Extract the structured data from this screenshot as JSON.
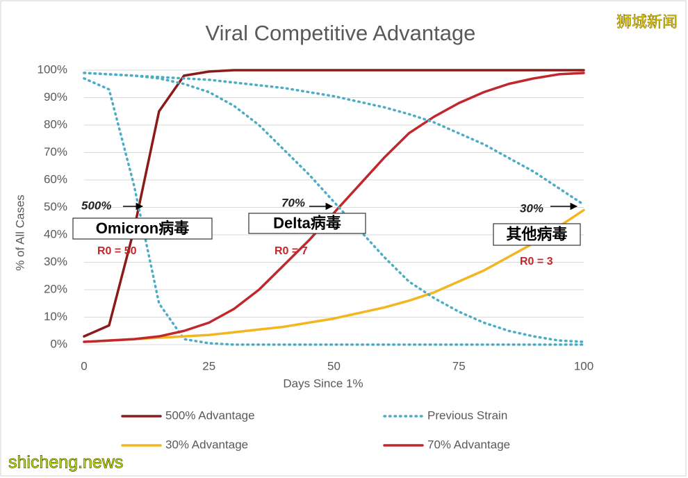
{
  "chart_data": {
    "type": "line",
    "title": "Viral Competitive Advantage",
    "x_label": "Days Since 1%",
    "y_label": "% of All Cases",
    "x": [
      0,
      5,
      10,
      15,
      20,
      25,
      30,
      35,
      40,
      45,
      50,
      55,
      60,
      65,
      70,
      75,
      80,
      85,
      90,
      95,
      100
    ],
    "xlim": [
      0,
      100
    ],
    "xticks": [
      0,
      25,
      50,
      75,
      100
    ],
    "ylim": [
      0,
      100
    ],
    "yticks": [
      {
        "value": 0,
        "label": "0%"
      },
      {
        "value": 10,
        "label": "10%"
      },
      {
        "value": 20,
        "label": "20%"
      },
      {
        "value": 30,
        "label": "30%"
      },
      {
        "value": 40,
        "label": "40%"
      },
      {
        "value": 50,
        "label": "50%"
      },
      {
        "value": 60,
        "label": "60%"
      },
      {
        "value": 70,
        "label": "70%"
      },
      {
        "value": 80,
        "label": "80%"
      },
      {
        "value": 90,
        "label": "90%"
      },
      {
        "value": 100,
        "label": "100%"
      }
    ],
    "grid": true,
    "series": [
      {
        "name": "500% Advantage",
        "color": "#8b1a1a",
        "style": "solid",
        "values": [
          3,
          7,
          42,
          85,
          98,
          99.5,
          100,
          100,
          100,
          100,
          100,
          100,
          100,
          100,
          100,
          100,
          100,
          100,
          100,
          100,
          100
        ]
      },
      {
        "name": "Previous Strain",
        "color": "#4bacc6",
        "style": "dotted",
        "values": [
          97,
          93,
          58,
          15,
          2,
          0.5,
          0,
          0,
          0,
          0,
          0,
          0,
          0,
          0,
          0,
          0,
          0,
          0,
          0,
          0,
          0
        ]
      },
      {
        "name": "30% Advantage",
        "color": "#f2b61f",
        "style": "solid",
        "values": [
          1,
          1.5,
          2,
          2.5,
          3,
          3.5,
          4.5,
          5.5,
          6.5,
          8,
          9.5,
          11.5,
          13.5,
          16,
          19,
          23,
          27,
          32,
          37,
          43,
          49
        ]
      },
      {
        "name": "70% Advantage",
        "color": "#c0282d",
        "style": "solid",
        "values": [
          1,
          1.5,
          2,
          3,
          5,
          8,
          13,
          20,
          29,
          38,
          48,
          58,
          68,
          77,
          83,
          88,
          92,
          95,
          97,
          98.5,
          99
        ]
      },
      {
        "name": "Previous Strain",
        "color": "#4bacc6",
        "style": "dotted",
        "values": [
          99,
          98.5,
          98,
          97,
          95,
          92,
          87,
          80,
          71,
          62,
          52,
          42,
          32,
          23,
          17,
          12,
          8,
          5,
          3,
          1.5,
          1
        ]
      },
      {
        "name": "Previous Strain",
        "color": "#4bacc6",
        "style": "dotted",
        "values": [
          99,
          98.5,
          98,
          97.5,
          97,
          96.5,
          95.5,
          94.5,
          93.5,
          92,
          90.5,
          88.5,
          86.5,
          84,
          81,
          77,
          73,
          68,
          63,
          57,
          51
        ]
      }
    ],
    "arrow_labels": [
      "500%",
      "70%",
      "30%"
    ],
    "virus_labels": [
      "Omicron病毒",
      "Delta病毒",
      "其他病毒"
    ],
    "r0_labels": [
      "R0 = 50",
      "R0 = 7",
      "R0 = 3"
    ],
    "watermarks": [
      "狮城新闻",
      "shicheng.news"
    ]
  }
}
